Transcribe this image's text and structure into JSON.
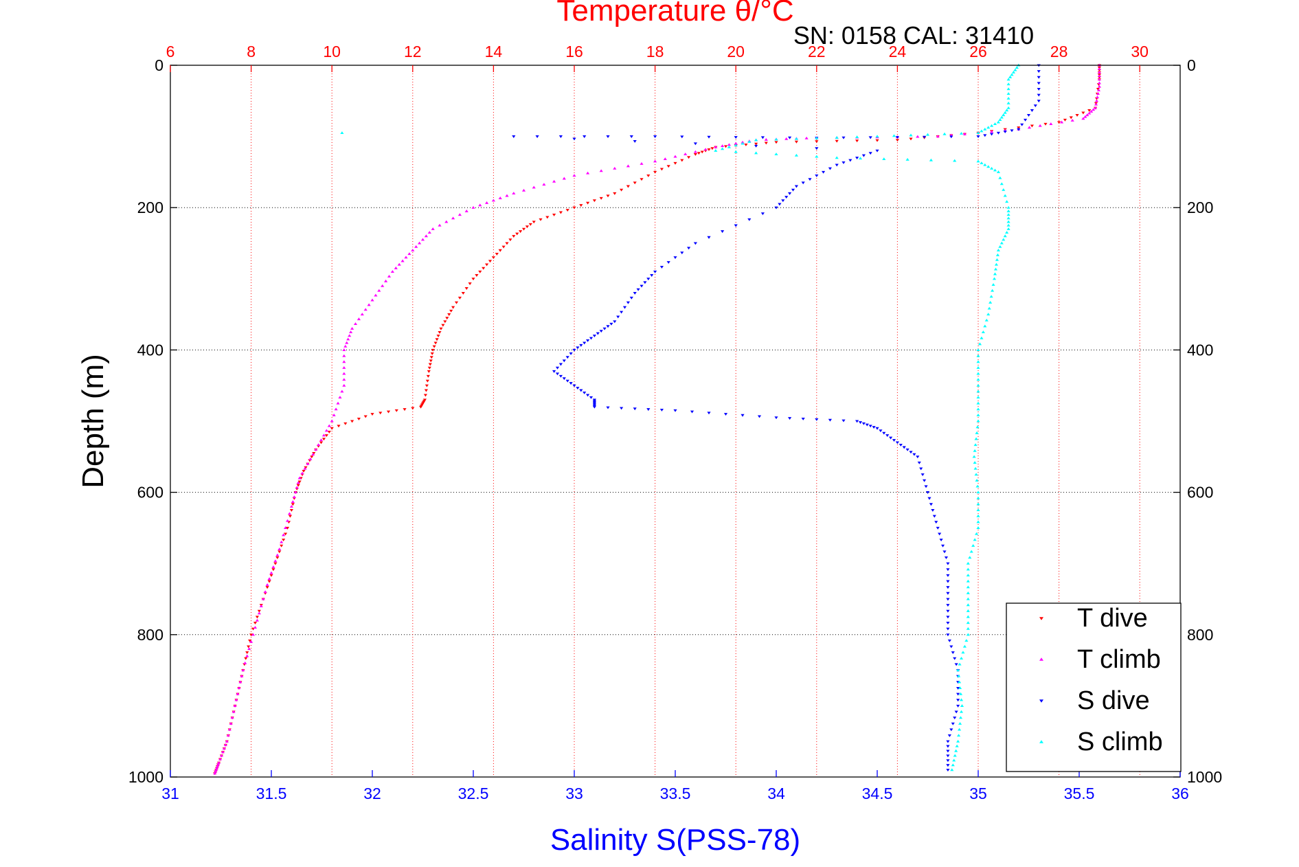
{
  "top_title": "Temperature θ/°C",
  "subtitle": "SN: 0158  CAL: 31410",
  "colors": {
    "temperature_axis": "#ff0000",
    "salinity_axis": "#0000ff",
    "t_dive": "#ff0000",
    "t_climb": "#ff00ff",
    "s_dive": "#0000ff",
    "s_climb": "#00ffff"
  },
  "chart_data": {
    "type": "scatter",
    "title": "Temperature θ/°C",
    "subtitle": "SN: 0158  CAL: 31410",
    "ylabel": "Depth (m)",
    "xlabel_bottom": "Salinity S(PSS-78)",
    "xlabel_top": "Temperature θ/°C",
    "ylim": [
      0,
      1000
    ],
    "y_reversed": true,
    "xlim_bottom": [
      31,
      36
    ],
    "xlim_top": [
      6,
      31
    ],
    "yticks": [
      0,
      200,
      400,
      600,
      800,
      1000
    ],
    "xticks_bottom": [
      31,
      31.5,
      32,
      32.5,
      33,
      33.5,
      34,
      34.5,
      35,
      35.5,
      36
    ],
    "xticks_top": [
      6,
      8,
      10,
      12,
      14,
      16,
      18,
      20,
      22,
      24,
      26,
      28,
      30
    ],
    "grid": true,
    "legend_position": "bottom-right",
    "series": [
      {
        "name": "T dive",
        "axis": "temperature",
        "marker": "triangle-down",
        "points": [
          [
            29,
            0
          ],
          [
            29,
            20
          ],
          [
            28.9,
            60
          ],
          [
            28,
            80
          ],
          [
            26,
            95
          ],
          [
            24,
            105
          ],
          [
            21,
            108
          ],
          [
            19.5,
            115
          ],
          [
            19,
            125
          ],
          [
            18,
            150
          ],
          [
            17,
            180
          ],
          [
            16,
            200
          ],
          [
            15,
            220
          ],
          [
            14.5,
            240
          ],
          [
            14,
            270
          ],
          [
            13.5,
            300
          ],
          [
            13,
            340
          ],
          [
            12.7,
            370
          ],
          [
            12.5,
            400
          ],
          [
            12.4,
            430
          ],
          [
            12.3,
            470
          ],
          [
            12.2,
            480
          ],
          [
            11,
            490
          ],
          [
            10,
            510
          ],
          [
            9.6,
            540
          ],
          [
            9.3,
            570
          ],
          [
            9.1,
            600
          ],
          [
            8.9,
            650
          ],
          [
            8.6,
            700
          ],
          [
            8.3,
            750
          ],
          [
            8,
            800
          ],
          [
            7.8,
            850
          ],
          [
            7.6,
            900
          ],
          [
            7.4,
            950
          ],
          [
            7.2,
            980
          ],
          [
            7.1,
            995
          ]
        ]
      },
      {
        "name": "T climb",
        "axis": "temperature",
        "marker": "triangle-up",
        "points": [
          [
            29,
            0
          ],
          [
            29,
            30
          ],
          [
            28.9,
            60
          ],
          [
            28.6,
            75
          ],
          [
            27,
            90
          ],
          [
            25,
            100
          ],
          [
            22,
            102
          ],
          [
            20.5,
            105
          ],
          [
            19.5,
            115
          ],
          [
            18,
            135
          ],
          [
            16,
            155
          ],
          [
            14.5,
            180
          ],
          [
            13.5,
            200
          ],
          [
            12.5,
            230
          ],
          [
            12,
            260
          ],
          [
            11.5,
            290
          ],
          [
            11,
            330
          ],
          [
            10.5,
            370
          ],
          [
            10.3,
            400
          ],
          [
            10.3,
            450
          ],
          [
            10,
            500
          ],
          [
            9.6,
            540
          ],
          [
            9.2,
            580
          ],
          [
            9,
            620
          ],
          [
            8.7,
            680
          ],
          [
            8.4,
            730
          ],
          [
            8.1,
            790
          ],
          [
            7.8,
            850
          ],
          [
            7.6,
            900
          ],
          [
            7.4,
            950
          ],
          [
            7.2,
            980
          ],
          [
            7.1,
            995
          ]
        ]
      },
      {
        "name": "S dive",
        "axis": "salinity",
        "marker": "triangle-down",
        "points": [
          [
            35.3,
            0
          ],
          [
            35.3,
            50
          ],
          [
            35.2,
            90
          ],
          [
            35.0,
            100
          ],
          [
            34.2,
            102
          ],
          [
            33.4,
            100
          ],
          [
            32.7,
            100
          ],
          [
            34.5,
            120
          ],
          [
            34.3,
            140
          ],
          [
            34.1,
            170
          ],
          [
            34.0,
            200
          ],
          [
            33.6,
            250
          ],
          [
            33.4,
            290
          ],
          [
            33.3,
            320
          ],
          [
            33.2,
            360
          ],
          [
            33.1,
            380
          ],
          [
            33.0,
            400
          ],
          [
            32.9,
            430
          ],
          [
            33.0,
            450
          ],
          [
            33.1,
            470
          ],
          [
            33.1,
            480
          ],
          [
            33.5,
            485
          ],
          [
            34.0,
            495
          ],
          [
            34.4,
            500
          ],
          [
            34.5,
            510
          ],
          [
            34.6,
            530
          ],
          [
            34.7,
            550
          ],
          [
            34.75,
            600
          ],
          [
            34.8,
            650
          ],
          [
            34.85,
            700
          ],
          [
            34.85,
            750
          ],
          [
            34.85,
            800
          ],
          [
            34.9,
            850
          ],
          [
            34.9,
            900
          ],
          [
            34.85,
            950
          ],
          [
            34.85,
            990
          ]
        ]
      },
      {
        "name": "S climb",
        "axis": "salinity",
        "marker": "triangle-up",
        "points": [
          [
            35.2,
            0
          ],
          [
            35.15,
            20
          ],
          [
            35.15,
            60
          ],
          [
            35.1,
            80
          ],
          [
            35.0,
            95
          ],
          [
            34.5,
            100
          ],
          [
            33.9,
            105
          ],
          [
            33.7,
            120
          ],
          [
            34.3,
            130
          ],
          [
            35.0,
            135
          ],
          [
            35.1,
            150
          ],
          [
            35.15,
            200
          ],
          [
            35.15,
            230
          ],
          [
            35.1,
            260
          ],
          [
            35.08,
            300
          ],
          [
            35.05,
            350
          ],
          [
            35.0,
            400
          ],
          [
            35.0,
            450
          ],
          [
            35.0,
            500
          ],
          [
            34.98,
            550
          ],
          [
            35.0,
            600
          ],
          [
            35.0,
            650
          ],
          [
            34.95,
            700
          ],
          [
            34.95,
            750
          ],
          [
            34.95,
            800
          ],
          [
            34.9,
            850
          ],
          [
            34.92,
            900
          ],
          [
            34.9,
            950
          ],
          [
            34.87,
            990
          ],
          [
            31.85,
            95
          ]
        ]
      }
    ]
  }
}
